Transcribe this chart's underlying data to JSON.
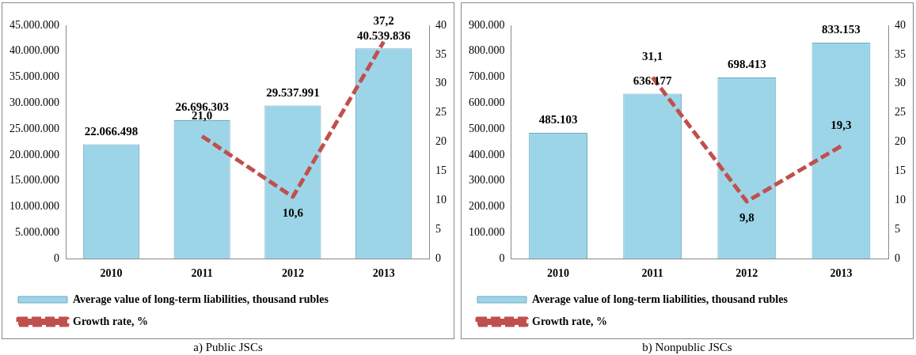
{
  "chart_data": [
    {
      "type": "bar",
      "categories": [
        "2010",
        "2011",
        "2012",
        "2013"
      ],
      "series": [
        {
          "name": "Average value of long-term liabilities, thousand rubles",
          "color": "#9dd5e8",
          "values": [
            22066498,
            26696303,
            29537991,
            40539836
          ],
          "value_labels": [
            "22.066.498",
            "26.696.303",
            "29.537.991",
            "40.539.836"
          ]
        },
        {
          "name": "Growth rate, %",
          "type": "line",
          "axis": "y2",
          "color": "#c0504d",
          "line_style": "dashed",
          "marker": "none",
          "values": [
            null,
            21.0,
            10.6,
            37.2
          ],
          "value_labels": [
            null,
            "21,0",
            "10,6",
            "37,2"
          ]
        }
      ],
      "ylim": [
        0,
        45000000
      ],
      "yticks": [
        0,
        {
          "value": 5000000,
          "label": "5.000.000"
        },
        {
          "value": 10000000,
          "label": "10.000.000"
        },
        {
          "value": 15000000,
          "label": "15.000.000"
        },
        {
          "value": 20000000,
          "label": "20.000.000"
        },
        {
          "value": 25000000,
          "label": "25.000.000"
        },
        {
          "value": 30000000,
          "label": "30.000.000"
        },
        {
          "value": 35000000,
          "label": "35.000.000"
        },
        {
          "value": 40000000,
          "label": "40.000.000"
        },
        {
          "value": 45000000,
          "label": "45.000.000"
        }
      ],
      "y2lim": [
        0,
        40
      ],
      "y2ticks": [
        0,
        5,
        10,
        15,
        20,
        25,
        30,
        35,
        40
      ],
      "legend": "bottom",
      "annotations": [
        "a) Public JSCs"
      ]
    },
    {
      "type": "bar",
      "categories": [
        "2010",
        "2011",
        "2012",
        "2013"
      ],
      "series": [
        {
          "name": "Average value of long-term liabilities, thousand rubles",
          "color": "#9dd5e8",
          "values": [
            485103,
            636177,
            698413,
            833153
          ],
          "value_labels": [
            "485.103",
            "636.177",
            "698.413",
            "833.153"
          ]
        },
        {
          "name": "Growth rate, %",
          "type": "line",
          "axis": "y2",
          "color": "#c0504d",
          "line_style": "dashed",
          "marker": "none",
          "values": [
            null,
            31.1,
            9.8,
            19.3
          ],
          "value_labels": [
            null,
            "31,1",
            "9,8",
            "19,3"
          ]
        }
      ],
      "ylim": [
        0,
        900000
      ],
      "yticks": [
        0,
        {
          "value": 100000,
          "label": "100.000"
        },
        {
          "value": 200000,
          "label": "200.000"
        },
        {
          "value": 300000,
          "label": "300.000"
        },
        {
          "value": 400000,
          "label": "400.000"
        },
        {
          "value": 500000,
          "label": "500.000"
        },
        {
          "value": 600000,
          "label": "600.000"
        },
        {
          "value": 700000,
          "label": "700.000"
        },
        {
          "value": 800000,
          "label": "800.000"
        },
        {
          "value": 900000,
          "label": "900.000"
        }
      ],
      "y2lim": [
        0,
        40
      ],
      "y2ticks": [
        0,
        5,
        10,
        15,
        20,
        25,
        30,
        35,
        40
      ],
      "legend": "bottom",
      "annotations": [
        "b) Nonpublic JSCs"
      ]
    }
  ]
}
